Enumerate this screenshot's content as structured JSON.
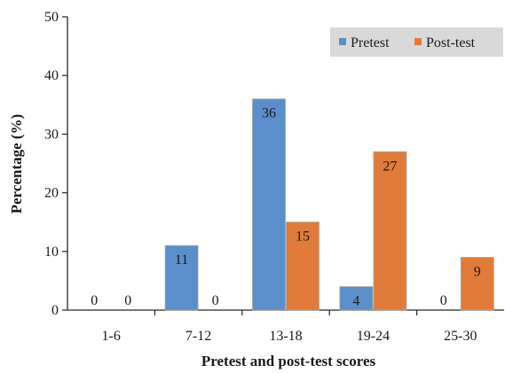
{
  "chart_data": {
    "type": "bar",
    "title": "",
    "xlabel": "Pretest and post-test scores",
    "ylabel": "Percentage (%)",
    "ylim": [
      0,
      50
    ],
    "yticks": [
      0,
      10,
      20,
      30,
      40,
      50
    ],
    "grid": false,
    "legend_position": "top-right",
    "categories": [
      "1-6",
      "7-12",
      "13-18",
      "19-24",
      "25-30"
    ],
    "series": [
      {
        "name": "Pretest",
        "color": "#5b8fcb",
        "values": [
          0,
          11,
          36,
          4,
          0
        ]
      },
      {
        "name": "Post-test",
        "color": "#e07b39",
        "values": [
          0,
          0,
          15,
          27,
          9
        ]
      }
    ]
  }
}
